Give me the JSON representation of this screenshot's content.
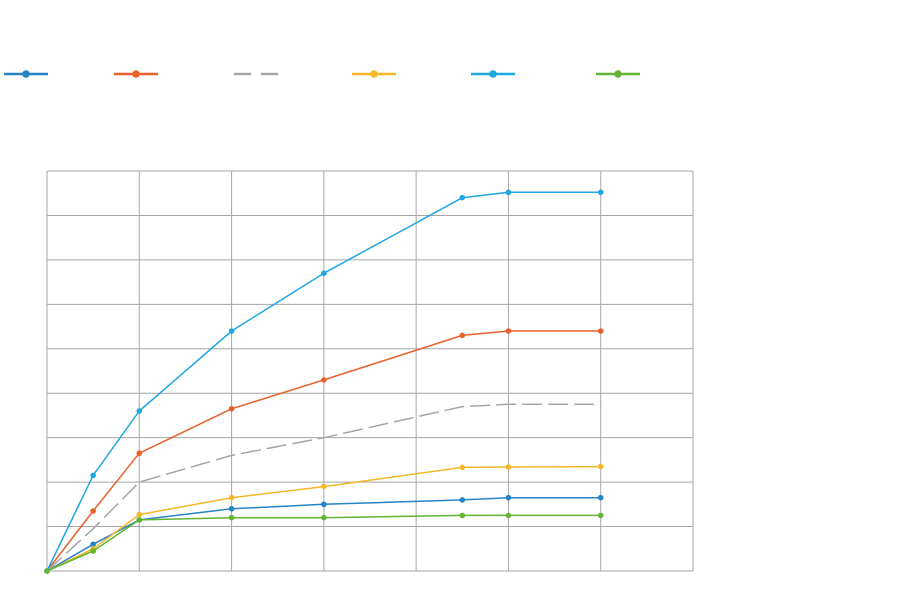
{
  "chart_data": {
    "type": "line",
    "x": [
      0,
      0.5,
      1,
      2,
      3,
      4.5,
      5,
      6
    ],
    "xlim": [
      0,
      7
    ],
    "ylim": [
      0,
      9
    ],
    "grid": true,
    "legend_placement": "top",
    "series": [
      {
        "color": "#2683c6",
        "marker": "circle",
        "dash": false,
        "values": [
          0,
          0.6,
          1.15,
          1.4,
          1.5,
          1.6,
          1.65,
          1.65
        ]
      },
      {
        "color": "#e8612c",
        "marker": "circle",
        "dash": false,
        "values": [
          0,
          1.35,
          2.65,
          3.65,
          4.3,
          5.3,
          5.4,
          5.4
        ]
      },
      {
        "color": "#a5a5a5",
        "marker": "none",
        "dash": true,
        "values": [
          0,
          0.95,
          2.0,
          2.6,
          3.0,
          3.7,
          3.75,
          3.75
        ]
      },
      {
        "color": "#f5b72a",
        "marker": "circle",
        "dash": false,
        "values": [
          0,
          0.5,
          1.27,
          1.65,
          1.9,
          2.33,
          2.34,
          2.35
        ]
      },
      {
        "color": "#1ea7e0",
        "marker": "circle",
        "dash": false,
        "values": [
          0,
          2.15,
          3.6,
          5.4,
          6.7,
          8.4,
          8.52,
          8.52
        ]
      },
      {
        "color": "#62b432",
        "marker": "circle",
        "dash": false,
        "values": [
          0,
          0.45,
          1.15,
          1.2,
          1.2,
          1.25,
          1.25,
          1.25
        ]
      }
    ]
  }
}
